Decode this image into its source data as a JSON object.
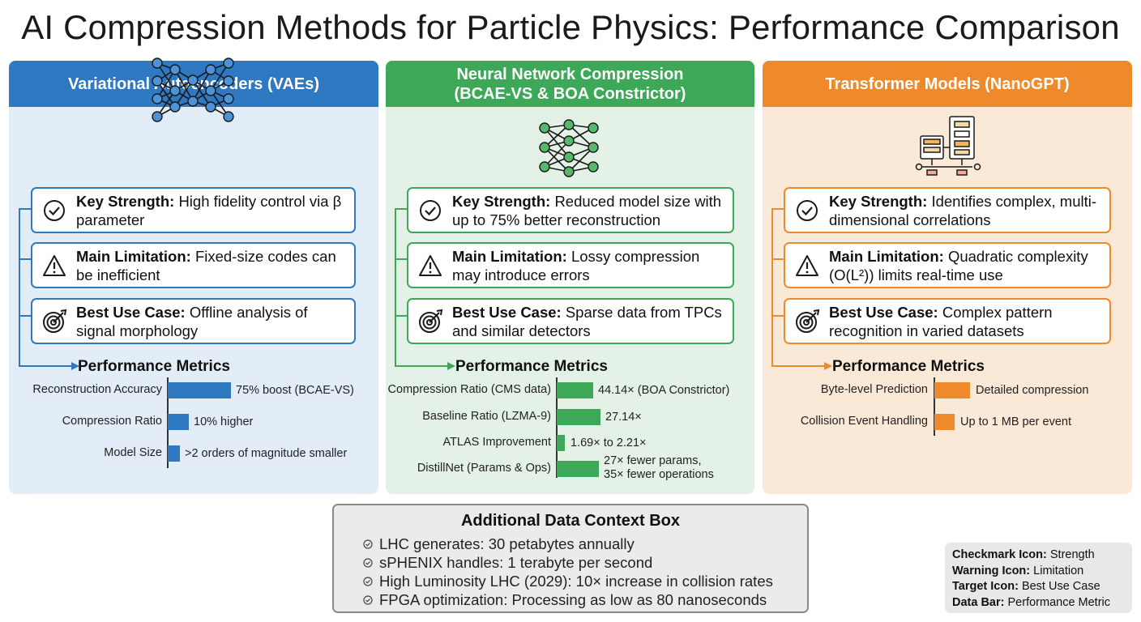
{
  "title": "AI Compression Methods for Particle Physics: Performance Comparison",
  "panels": [
    {
      "header": "Variational Autoencoders (VAEs)",
      "icon": "neural-network-icon",
      "color": "#2f78c2",
      "bg": "#e3edf7",
      "strength_label": "Key Strength:",
      "strength_text": "High fidelity control via β parameter",
      "limitation_label": "Main Limitation:",
      "limitation_text": "Fixed-size codes can be inefficient",
      "usecase_label": "Best Use Case:",
      "usecase_text": "Offline analysis of signal morphology",
      "metrics_title": "Performance Metrics",
      "metrics": [
        {
          "label": "Reconstruction Accuracy",
          "value": "75% boost (BCAE-VS)",
          "bar": 75
        },
        {
          "label": "Compression Ratio",
          "value": "10% higher",
          "bar": 25
        },
        {
          "label": "Model Size",
          "value": ">2 orders of magnitude smaller",
          "bar": 15
        }
      ]
    },
    {
      "header_line1": "Neural Network Compression",
      "header_line2": "(BCAE-VS & BOA Constrictor)",
      "icon": "neural-network-icon",
      "color": "#3da858",
      "bg": "#e4f1e6",
      "strength_label": "Key Strength:",
      "strength_text": "Reduced model size with up to 75% better reconstruction",
      "limitation_label": "Main Limitation:",
      "limitation_text": "Lossy compression may introduce errors",
      "usecase_label": "Best Use Case:",
      "usecase_text": "Sparse data from TPCs and similar detectors",
      "metrics_title": "Performance Metrics",
      "metrics": [
        {
          "label": "Compression Ratio (CMS data)",
          "value": "44.14× (BOA Constrictor)",
          "bar": 44.14
        },
        {
          "label": "Baseline Ratio (LZMA-9)",
          "value": "27.14×",
          "bar": 27.14
        },
        {
          "label": "ATLAS Improvement",
          "value": "1.69× to 2.21×",
          "bar": 4
        },
        {
          "label": "DistillNet (Params & Ops)",
          "value_line1": "27× fewer params,",
          "value_line2": "35× fewer operations",
          "bar": 27
        }
      ]
    },
    {
      "header": "Transformer Models (NanoGPT)",
      "icon": "transformer-diagram-icon",
      "color": "#ef8a2c",
      "bg": "#fbe9d8",
      "strength_label": "Key Strength:",
      "strength_text": "Identifies complex, multi-dimensional correlations",
      "limitation_label": "Main Limitation:",
      "limitation_text": "Quadratic complexity (O(L²)) limits real-time use",
      "usecase_label": "Best Use Case:",
      "usecase_text": "Complex pattern recognition in varied datasets",
      "metrics_title": "Performance Metrics",
      "metrics": [
        {
          "label": "Byte-level Prediction",
          "value": "Detailed compression",
          "bar": 44
        },
        {
          "label": "Collision Event Handling",
          "value": "Up to 1 MB per event",
          "bar": 25
        }
      ]
    }
  ],
  "context": {
    "title": "Additional Data Context Box",
    "items": [
      "LHC generates: 30 petabytes annually",
      "sPHENIX handles: 1 terabyte per second",
      "High Luminosity LHC (2029): 10× increase in collision rates",
      "FPGA optimization: Processing as low as 80 nanoseconds"
    ]
  },
  "legend": [
    {
      "label": "Checkmark Icon:",
      "text": "Strength"
    },
    {
      "label": "Warning Icon:",
      "text": "Limitation"
    },
    {
      "label": "Target Icon:",
      "text": "Best Use Case"
    },
    {
      "label": "Data Bar:",
      "text": "Performance Metric"
    }
  ]
}
